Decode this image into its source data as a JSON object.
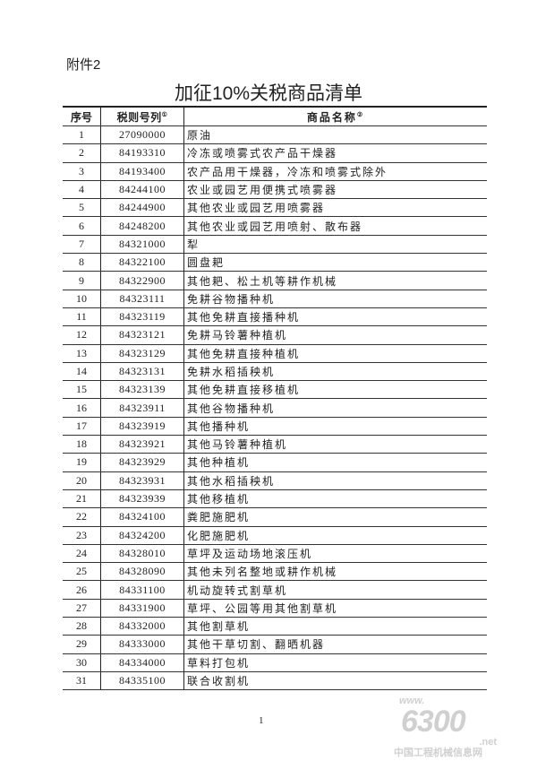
{
  "attachment_label": "附件2",
  "title": "加征10%关税商品清单",
  "table": {
    "headers": [
      "序号",
      "税则号列",
      "商品名称"
    ],
    "header_notes": [
      "①",
      "②"
    ],
    "rows": [
      [
        "1",
        "27090000",
        "原油"
      ],
      [
        "2",
        "84193310",
        "冷冻或喷雾式农产品干燥器"
      ],
      [
        "3",
        "84193400",
        "农产品用干燥器，冷冻和喷雾式除外"
      ],
      [
        "4",
        "84244100",
        "农业或园艺用便携式喷雾器"
      ],
      [
        "5",
        "84244900",
        "其他农业或园艺用喷雾器"
      ],
      [
        "6",
        "84248200",
        "其他农业或园艺用喷射、散布器"
      ],
      [
        "7",
        "84321000",
        "犁"
      ],
      [
        "8",
        "84322100",
        "圆盘耙"
      ],
      [
        "9",
        "84322900",
        "其他耙、松土机等耕作机械"
      ],
      [
        "10",
        "84323111",
        "免耕谷物播种机"
      ],
      [
        "11",
        "84323119",
        "其他免耕直接播种机"
      ],
      [
        "12",
        "84323121",
        "免耕马铃薯种植机"
      ],
      [
        "13",
        "84323129",
        "其他免耕直接种植机"
      ],
      [
        "14",
        "84323131",
        "免耕水稻插秧机"
      ],
      [
        "15",
        "84323139",
        "其他免耕直接移植机"
      ],
      [
        "16",
        "84323911",
        "其他谷物播种机"
      ],
      [
        "17",
        "84323919",
        "其他播种机"
      ],
      [
        "18",
        "84323921",
        "其他马铃薯种植机"
      ],
      [
        "19",
        "84323929",
        "其他种植机"
      ],
      [
        "20",
        "84323931",
        "其他水稻插秧机"
      ],
      [
        "21",
        "84323939",
        "其他移植机"
      ],
      [
        "22",
        "84324100",
        "粪肥施肥机"
      ],
      [
        "23",
        "84324200",
        "化肥施肥机"
      ],
      [
        "24",
        "84328010",
        "草坪及运动场地滚压机"
      ],
      [
        "25",
        "84328090",
        "其他未列名整地或耕作机械"
      ],
      [
        "26",
        "84331100",
        "机动旋转式割草机"
      ],
      [
        "27",
        "84331900",
        "草坪、公园等用其他割草机"
      ],
      [
        "28",
        "84332000",
        "其他割草机"
      ],
      [
        "29",
        "84333000",
        "其他干草切割、翻晒机器"
      ],
      [
        "30",
        "84334000",
        "草料打包机"
      ],
      [
        "31",
        "84335100",
        "联合收割机"
      ]
    ]
  },
  "page_number": "1",
  "watermark": {
    "www": "www.",
    "number": "6300",
    "net": ".net",
    "name": "中国工程机械信息网"
  }
}
